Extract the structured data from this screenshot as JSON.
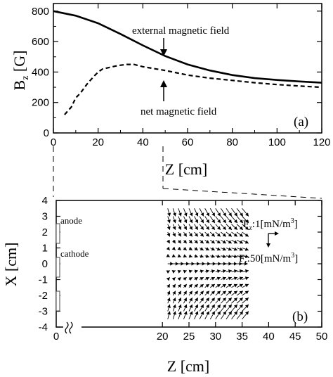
{
  "chart_data": [
    {
      "type": "line",
      "panel_label": "(a)",
      "xlabel": "Z [cm]",
      "ylabel_main": "B",
      "ylabel_sub": "z",
      "ylabel_unit": " [G]",
      "xlim": [
        0,
        120
      ],
      "ylim": [
        0,
        850
      ],
      "x_ticks": [
        "0",
        "20",
        "40",
        "60",
        "80",
        "100",
        "120"
      ],
      "y_ticks": [
        "0",
        "200",
        "400",
        "600",
        "800"
      ],
      "grid": false,
      "annotations": [
        "external magnetic field",
        "net magnetic field"
      ],
      "series": [
        {
          "name": "external magnetic field",
          "style": "solid",
          "x": [
            0,
            10,
            20,
            30,
            40,
            50,
            60,
            70,
            80,
            90,
            100,
            110,
            120
          ],
          "y": [
            800,
            770,
            720,
            650,
            575,
            505,
            450,
            410,
            380,
            360,
            348,
            338,
            330
          ]
        },
        {
          "name": "net magnetic field",
          "style": "dashed",
          "x": [
            5,
            8,
            10,
            12,
            15,
            18,
            20,
            22,
            25,
            28,
            30,
            33,
            36,
            40,
            50,
            60,
            70,
            80,
            90,
            100,
            110,
            120
          ],
          "y": [
            120,
            170,
            230,
            260,
            320,
            370,
            400,
            420,
            430,
            440,
            445,
            450,
            450,
            435,
            410,
            380,
            360,
            345,
            330,
            318,
            308,
            300
          ]
        }
      ]
    },
    {
      "type": "scatter",
      "subtype": "vector_field",
      "panel_label": "(b)",
      "xlabel": "Z [cm]",
      "ylabel": "X [cm]",
      "xlim": [
        0,
        50
      ],
      "ylim": [
        -4,
        4
      ],
      "x_ticks": [
        "0",
        "20",
        "25",
        "30",
        "35",
        "40",
        "45",
        "50"
      ],
      "y_ticks": [
        "4",
        "3",
        "2",
        "1",
        "0",
        "-1",
        "-2",
        "-3",
        "-4"
      ],
      "grid_z": [
        21,
        22,
        23,
        24,
        25,
        26,
        27,
        28,
        29,
        30,
        31,
        32,
        33,
        34,
        35
      ],
      "grid_x": [
        3.5,
        3.0,
        2.5,
        2.0,
        1.5,
        1.0,
        0.5,
        0.0,
        -0.5,
        -1.0,
        -1.5,
        -2.0,
        -2.5,
        -3.0,
        -3.5
      ],
      "labels": [
        "anode",
        "cathode"
      ],
      "legend_fz_main": "F",
      "legend_fz_sub": "z",
      "legend_fz_val": ":1[mN/m",
      "legend_fz_sup": "3",
      "legend_fz_end": "]",
      "legend_fr_main": "F",
      "legend_fr_sub": "r",
      "legend_fr_val": ":50[mN/m",
      "legend_fr_sup": "3",
      "legend_fr_end": "]"
    }
  ]
}
